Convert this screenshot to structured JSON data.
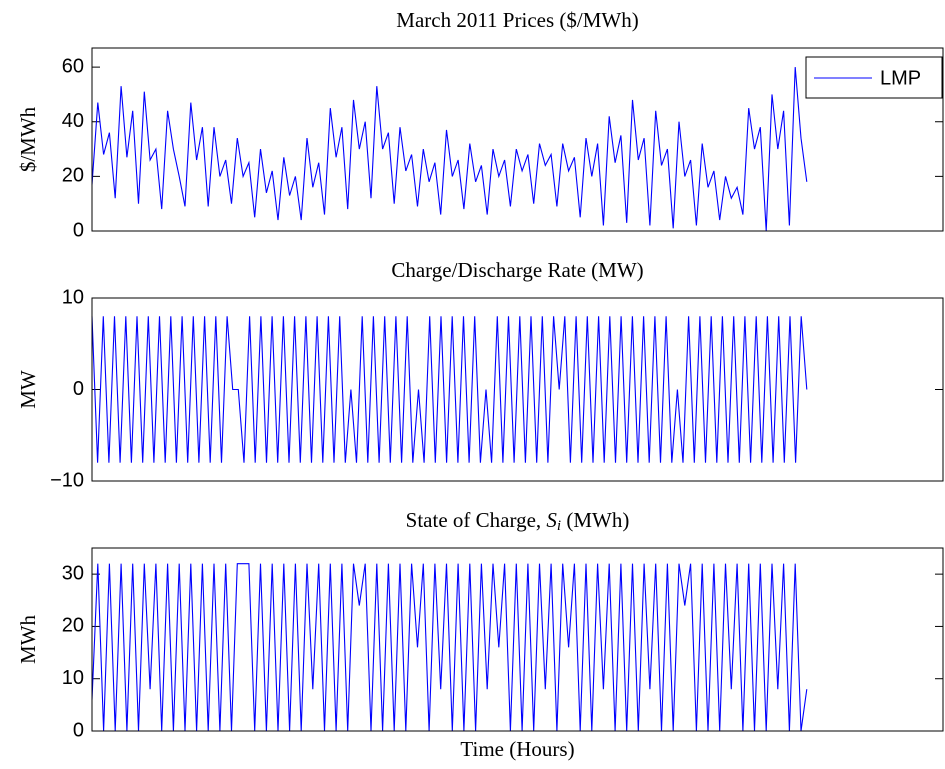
{
  "chart_data": [
    {
      "type": "line",
      "title": "March 2011 Prices ($/MWh)",
      "ylabel": "$/MWh",
      "ylim": [
        0,
        67
      ],
      "yticks": [
        0,
        20,
        40,
        60
      ],
      "legend": "upper right",
      "series": [
        {
          "name": "LMP",
          "color": "#0000ff",
          "values": [
            17,
            47,
            28,
            36,
            12,
            53,
            27,
            44,
            10,
            51,
            26,
            30,
            8,
            44,
            30,
            20,
            9,
            47,
            26,
            38,
            9,
            38,
            20,
            26,
            10,
            34,
            20,
            25,
            5,
            30,
            14,
            22,
            4,
            27,
            13,
            20,
            4,
            34,
            16,
            25,
            6,
            45,
            27,
            38,
            8,
            48,
            30,
            40,
            12,
            53,
            30,
            36,
            10,
            38,
            22,
            28,
            9,
            30,
            18,
            25,
            6,
            37,
            20,
            26,
            8,
            32,
            18,
            24,
            6,
            30,
            20,
            26,
            9,
            30,
            22,
            28,
            10,
            32,
            24,
            28,
            9,
            32,
            22,
            27,
            5,
            34,
            20,
            32,
            2,
            42,
            25,
            35,
            3,
            48,
            26,
            34,
            2,
            44,
            24,
            30,
            1,
            40,
            20,
            26,
            2,
            32,
            16,
            22,
            4,
            20,
            12,
            16,
            6,
            45,
            30,
            38,
            0,
            50,
            30,
            44,
            2,
            60,
            34,
            18
          ]
        }
      ]
    },
    {
      "type": "line",
      "title": "Charge/Discharge Rate (MW)",
      "ylabel": "MW",
      "ylim": [
        -10,
        10
      ],
      "yticks": [
        {
          "value": -10,
          "label": "−10"
        },
        0,
        10
      ],
      "color": "#0000ff",
      "values": [
        8,
        -8,
        8,
        -8,
        8,
        -8,
        8,
        -8,
        8,
        -8,
        8,
        -8,
        8,
        -8,
        8,
        -8,
        8,
        -8,
        8,
        -8,
        8,
        -8,
        8,
        -8,
        8,
        0,
        0,
        -8,
        8,
        -8,
        8,
        -8,
        8,
        -8,
        8,
        -8,
        8,
        -8,
        8,
        -8,
        8,
        -8,
        8,
        -8,
        8,
        -8,
        0,
        -8,
        8,
        -8,
        8,
        -8,
        8,
        -8,
        8,
        -8,
        8,
        -8,
        0,
        -8,
        8,
        -8,
        8,
        -8,
        8,
        -8,
        8,
        -8,
        8,
        -8,
        0,
        -8,
        8,
        -8,
        8,
        -8,
        8,
        -8,
        8,
        -8,
        8,
        -8,
        8,
        0,
        8,
        -8,
        8,
        -8,
        8,
        -8,
        8,
        -8,
        8,
        -8,
        8,
        -8,
        8,
        -8,
        8,
        -8,
        8,
        -8,
        8,
        -8,
        0,
        -8,
        8,
        -8,
        8,
        -8,
        8,
        -8,
        8,
        -8,
        8,
        -8,
        8,
        -8,
        8,
        -8,
        8,
        -8,
        8,
        -8,
        8,
        -8,
        8,
        0
      ]
    },
    {
      "type": "line",
      "title": "State of Charge, S_i (MWh)",
      "ylabel": "MWh",
      "xlabel": "Time (Hours)",
      "ylim": [
        0,
        35
      ],
      "yticks": [
        0,
        10,
        20,
        30
      ],
      "color": "#0000ff",
      "values": [
        6,
        32,
        0,
        32,
        0,
        32,
        0,
        32,
        0,
        32,
        8,
        32,
        0,
        32,
        0,
        32,
        0,
        32,
        0,
        32,
        0,
        32,
        0,
        32,
        0,
        32,
        32,
        32,
        0,
        32,
        0,
        32,
        0,
        32,
        0,
        32,
        0,
        32,
        8,
        32,
        0,
        32,
        0,
        32,
        0,
        32,
        24,
        32,
        0,
        32,
        0,
        32,
        0,
        32,
        0,
        32,
        16,
        32,
        0,
        32,
        8,
        32,
        0,
        32,
        0,
        32,
        0,
        32,
        8,
        32,
        16,
        32,
        0,
        32,
        0,
        32,
        0,
        32,
        8,
        32,
        0,
        32,
        16,
        32,
        0,
        32,
        0,
        32,
        8,
        32,
        0,
        32,
        0,
        32,
        0,
        32,
        8,
        32,
        0,
        32,
        0,
        32,
        24,
        32,
        0,
        32,
        0,
        32,
        0,
        32,
        8,
        32,
        0,
        32,
        0,
        32,
        0,
        32,
        8,
        32,
        0,
        32,
        0,
        8
      ]
    }
  ]
}
